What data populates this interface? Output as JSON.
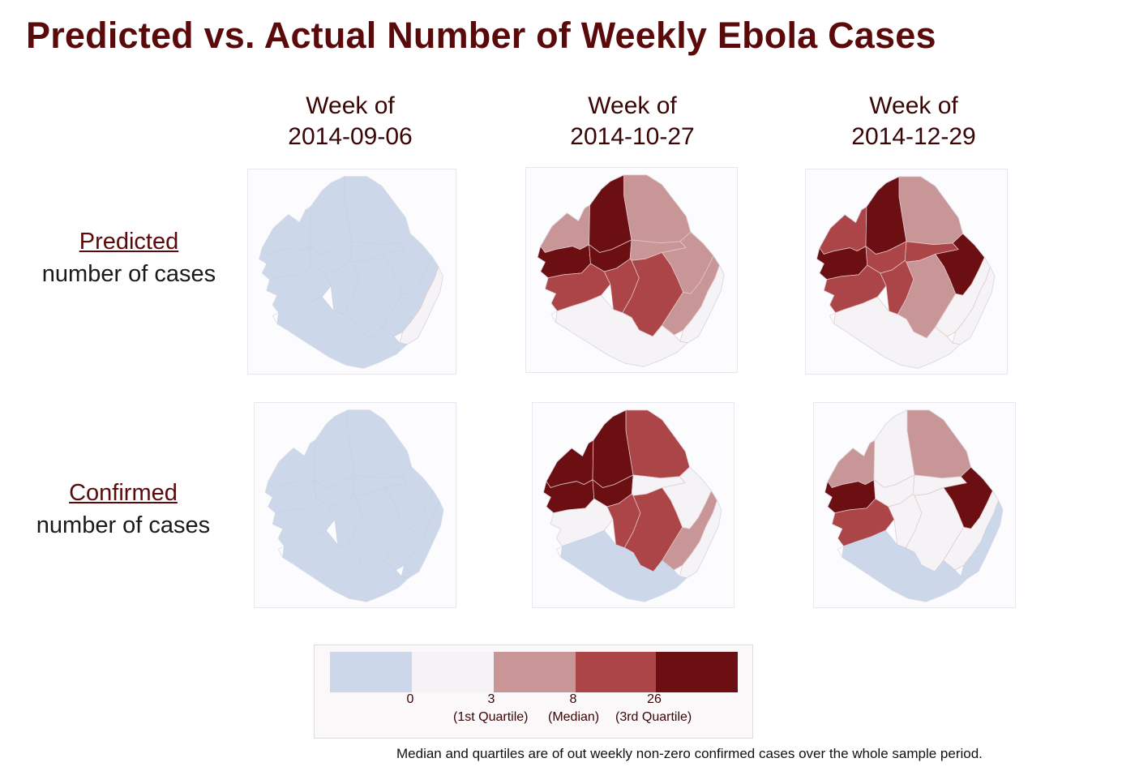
{
  "title": "Predicted vs. Actual Number of Weekly Ebola Cases",
  "columns": [
    {
      "line1": "Week of",
      "line2": "2014-09-06"
    },
    {
      "line1": "Week of",
      "line2": "2014-10-27"
    },
    {
      "line1": "Week of",
      "line2": "2014-12-29"
    }
  ],
  "rows": [
    {
      "emph": "Predicted",
      "rest": "number of cases"
    },
    {
      "emph": "Confirmed",
      "rest": "number of cases"
    }
  ],
  "colors": {
    "0": "#ccd8ea",
    "1": "#f6f3f6",
    "2": "#c99697",
    "3": "#ac4548",
    "4": "#6b0f12"
  },
  "legend": {
    "ticks": [
      "0",
      "3",
      "8",
      "26"
    ],
    "quartiles": [
      "(1st Quartile)",
      "(Median)",
      "(3rd Quartile)"
    ]
  },
  "footnote": "Median and quartiles are of out weekly non-zero confirmed cases over the whole sample period.",
  "maps": [
    {
      "name": "predicted-2014-09-06",
      "classes": {
        "NW": 0,
        "NC": 0,
        "NE": 0,
        "W": 0,
        "C1": 0,
        "C2": 0,
        "E": 0,
        "SW": 0,
        "S1": 0,
        "S2": 0,
        "SE": 0,
        "KE": 1,
        "CO": 0
      }
    },
    {
      "name": "predicted-2014-10-27",
      "classes": {
        "NW": 2,
        "NC": 4,
        "NE": 2,
        "W": 4,
        "C1": 4,
        "C2": 2,
        "E": 2,
        "SW": 3,
        "S1": 3,
        "S2": 3,
        "SE": 2,
        "KE": 1,
        "CO": 1
      }
    },
    {
      "name": "predicted-2014-12-29",
      "classes": {
        "NW": 3,
        "NC": 4,
        "NE": 2,
        "W": 4,
        "C1": 3,
        "C2": 3,
        "E": 4,
        "SW": 3,
        "S1": 3,
        "S2": 2,
        "SE": 1,
        "KE": 1,
        "CO": 1
      }
    },
    {
      "name": "confirmed-2014-09-06",
      "classes": {
        "NW": 0,
        "NC": 0,
        "NE": 0,
        "W": 0,
        "C1": 0,
        "C2": 0,
        "E": 0,
        "SW": 0,
        "S1": 0,
        "S2": 0,
        "SE": 0,
        "KE": 0,
        "CO": 0
      }
    },
    {
      "name": "confirmed-2014-10-27",
      "classes": {
        "NW": 4,
        "NC": 4,
        "NE": 3,
        "W": 4,
        "C1": 4,
        "C2": 1,
        "E": 1,
        "SW": 1,
        "S1": 3,
        "S2": 3,
        "SE": 2,
        "KE": 1,
        "CO": 0
      }
    },
    {
      "name": "confirmed-2014-12-29",
      "classes": {
        "NW": 2,
        "NC": 1,
        "NE": 2,
        "W": 4,
        "C1": 1,
        "C2": 1,
        "E": 4,
        "SW": 3,
        "S1": 1,
        "S2": 1,
        "SE": 1,
        "KE": 0,
        "CO": 0
      }
    }
  ]
}
